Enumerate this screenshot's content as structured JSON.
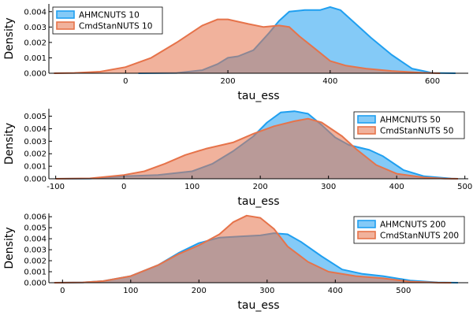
{
  "colors": {
    "series1": "#1f9ff0",
    "series2": "#e6734a"
  },
  "chart_data": [
    {
      "type": "area",
      "xlabel": "tau_ess",
      "ylabel": "Density",
      "xlim": [
        -150,
        670
      ],
      "ylim": [
        0,
        0.0045
      ],
      "x_ticks": [
        0,
        200,
        400,
        600
      ],
      "y_ticks": [
        0.0,
        0.001,
        0.002,
        0.003,
        0.004
      ],
      "y_tick_labels": [
        "0.000",
        "0.001",
        "0.002",
        "0.003",
        "0.004"
      ],
      "grid": false,
      "legend_position": "top-left",
      "series": [
        {
          "name": "AHMCNUTS 10",
          "x": [
            25,
            100,
            150,
            180,
            200,
            220,
            250,
            280,
            300,
            320,
            350,
            380,
            400,
            420,
            450,
            480,
            520,
            560,
            600,
            645
          ],
          "y": [
            0,
            2e-05,
            0.0002,
            0.0006,
            0.001,
            0.0011,
            0.0015,
            0.0026,
            0.0034,
            0.004,
            0.0041,
            0.0041,
            0.0043,
            0.0041,
            0.0032,
            0.0023,
            0.0012,
            0.0003,
            2e-05,
            0
          ]
        },
        {
          "name": "CmdStanNUTS 10",
          "x": [
            -140,
            -100,
            -50,
            0,
            50,
            100,
            150,
            180,
            200,
            240,
            270,
            300,
            320,
            340,
            370,
            400,
            430,
            470,
            520,
            580,
            615
          ],
          "y": [
            0,
            2e-05,
            0.0001,
            0.0004,
            0.001,
            0.002,
            0.0031,
            0.0035,
            0.0035,
            0.0032,
            0.003,
            0.0031,
            0.003,
            0.0024,
            0.0016,
            0.0008,
            0.0005,
            0.0003,
            0.00015,
            3e-05,
            0
          ]
        }
      ]
    },
    {
      "type": "area",
      "xlabel": "tau_ess",
      "ylabel": "Density",
      "xlim": [
        -110,
        505
      ],
      "ylim": [
        0,
        0.0056
      ],
      "x_ticks": [
        -100,
        0,
        100,
        200,
        300,
        400,
        500
      ],
      "y_ticks": [
        0.0,
        0.001,
        0.002,
        0.003,
        0.004,
        0.005
      ],
      "y_tick_labels": [
        "0.000",
        "0.001",
        "0.002",
        "0.003",
        "0.004",
        "0.005"
      ],
      "grid": false,
      "legend_position": "top-right",
      "series": [
        {
          "name": "AHMCNUTS 50",
          "x": [
            -100,
            -50,
            0,
            50,
            100,
            130,
            160,
            190,
            210,
            230,
            250,
            270,
            290,
            310,
            330,
            360,
            380,
            410,
            440,
            480,
            490
          ],
          "y": [
            0,
            2e-05,
            0.0002,
            0.0003,
            0.0006,
            0.0012,
            0.0022,
            0.0034,
            0.0045,
            0.0053,
            0.0054,
            0.0052,
            0.0043,
            0.0033,
            0.0027,
            0.0023,
            0.0018,
            0.0007,
            0.0002,
            2e-05,
            0
          ]
        },
        {
          "name": "CmdStanNUTS 50",
          "x": [
            -100,
            -50,
            0,
            30,
            60,
            90,
            120,
            160,
            190,
            220,
            250,
            270,
            290,
            320,
            340,
            370,
            400,
            440,
            470,
            490
          ],
          "y": [
            0,
            3e-05,
            0.0003,
            0.0006,
            0.0012,
            0.0019,
            0.0024,
            0.0029,
            0.0036,
            0.0042,
            0.0046,
            0.0048,
            0.0045,
            0.0034,
            0.0024,
            0.0011,
            0.0004,
            0.0001,
            2e-05,
            0
          ]
        }
      ]
    },
    {
      "type": "area",
      "xlabel": "tau_ess",
      "ylabel": "Density",
      "xlim": [
        -20,
        595
      ],
      "ylim": [
        0,
        0.0063
      ],
      "x_ticks": [
        0,
        100,
        200,
        300,
        400,
        500
      ],
      "y_ticks": [
        0.0,
        0.001,
        0.002,
        0.003,
        0.004,
        0.005,
        0.006
      ],
      "y_tick_labels": [
        "0.000",
        "0.001",
        "0.002",
        "0.003",
        "0.004",
        "0.005",
        "0.006"
      ],
      "grid": false,
      "legend_position": "top-right",
      "series": [
        {
          "name": "AHMCNUTS 200",
          "x": [
            -12,
            30,
            60,
            100,
            140,
            170,
            200,
            230,
            260,
            290,
            310,
            330,
            350,
            380,
            410,
            440,
            470,
            510,
            550,
            580
          ],
          "y": [
            0,
            3e-05,
            0.00015,
            0.0006,
            0.0016,
            0.0027,
            0.0036,
            0.0041,
            0.0042,
            0.0043,
            0.0045,
            0.0044,
            0.0037,
            0.0024,
            0.0012,
            0.0008,
            0.0006,
            0.0002,
            3e-05,
            0
          ]
        },
        {
          "name": "CmdStanNUTS 200",
          "x": [
            -12,
            30,
            60,
            100,
            140,
            170,
            200,
            230,
            250,
            270,
            290,
            310,
            330,
            360,
            390,
            430,
            470,
            510,
            550,
            570
          ],
          "y": [
            0,
            3e-05,
            0.00015,
            0.0006,
            0.0016,
            0.0026,
            0.0034,
            0.0044,
            0.0055,
            0.0061,
            0.0059,
            0.0049,
            0.0033,
            0.0019,
            0.001,
            0.0006,
            0.0004,
            0.0001,
            1e-05,
            0
          ]
        }
      ]
    }
  ]
}
